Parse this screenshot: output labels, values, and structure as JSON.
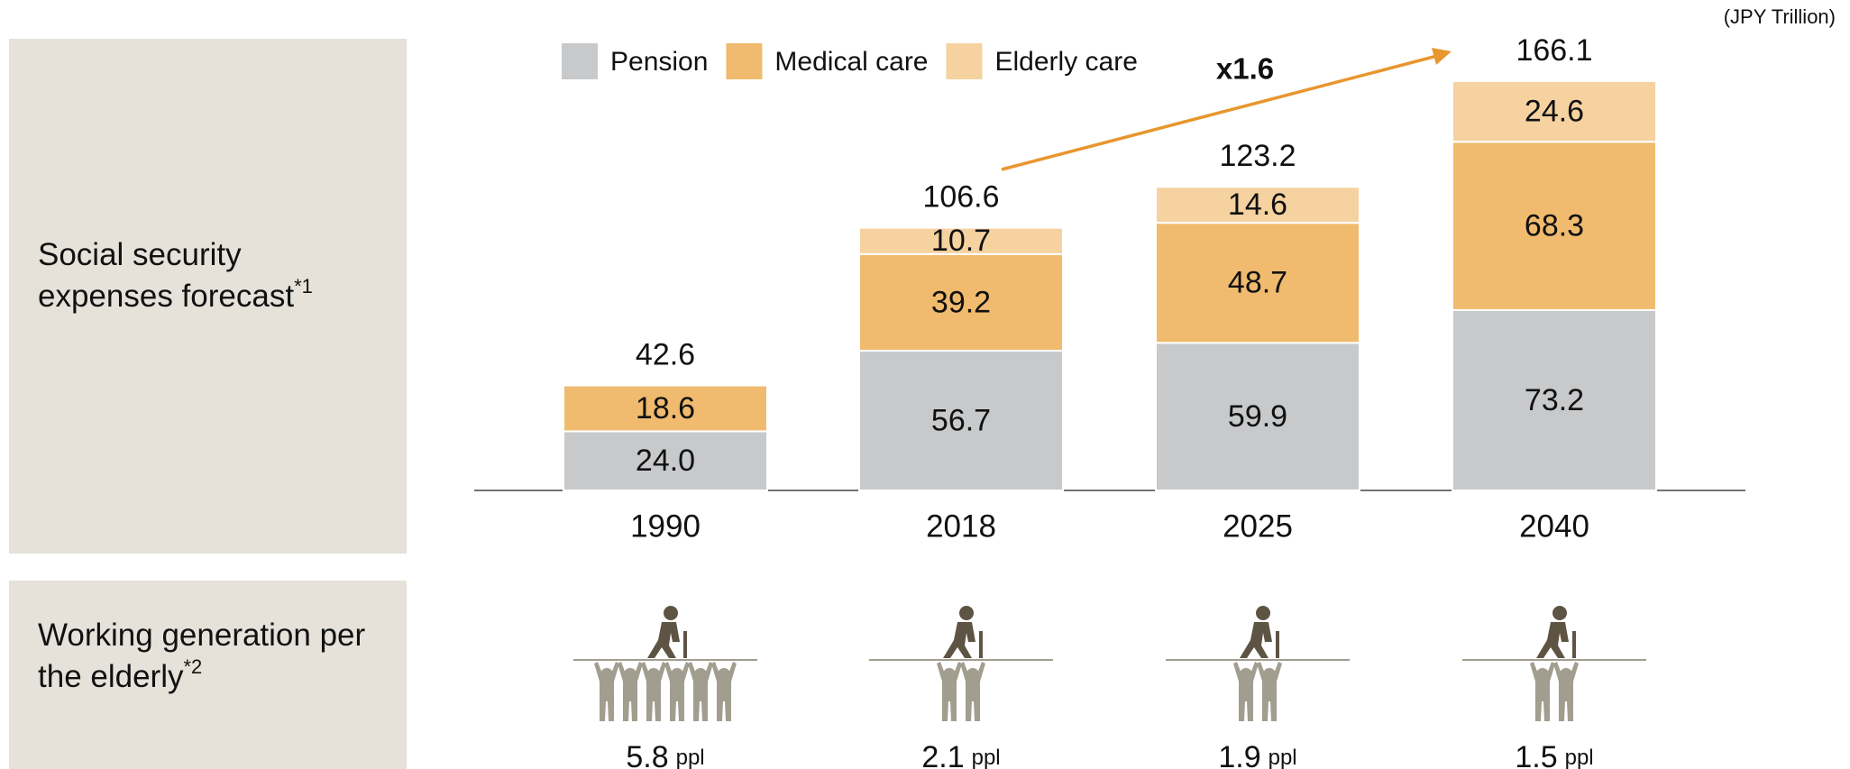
{
  "chart_data": {
    "type": "bar",
    "stacked": true,
    "unit_label": "(JPY Trillion)",
    "row_label": {
      "text": "Social security expenses forecast",
      "note": "*1"
    },
    "categories": [
      "1990",
      "2018",
      "2025",
      "2040"
    ],
    "series": [
      {
        "name": "Pension",
        "color": "#c8c9cb",
        "values": [
          24.0,
          56.7,
          59.9,
          73.2
        ],
        "value_labels": [
          "24.0",
          "56.7",
          "59.9",
          "73.2"
        ]
      },
      {
        "name": "Medical care",
        "color": "#f0bb6e",
        "values": [
          18.6,
          39.2,
          48.7,
          68.3
        ],
        "value_labels": [
          "18.6",
          "39.2",
          "48.7",
          "68.3"
        ]
      },
      {
        "name": "Elderly care",
        "color": "#f6d2a1",
        "values": [
          null,
          10.7,
          14.6,
          24.6
        ],
        "value_labels": [
          null,
          "10.7",
          "14.6",
          "24.6"
        ]
      }
    ],
    "totals": [
      42.6,
      106.6,
      123.2,
      166.1
    ],
    "annotation": {
      "text": "x1.6",
      "color": "#e8962e"
    },
    "legend": "top"
  },
  "working_generation": {
    "row_label": {
      "text": "Working generation per the elderly",
      "note": "*2"
    },
    "values": [
      5.8,
      2.1,
      1.9,
      1.5
    ],
    "unit": "ppl"
  }
}
